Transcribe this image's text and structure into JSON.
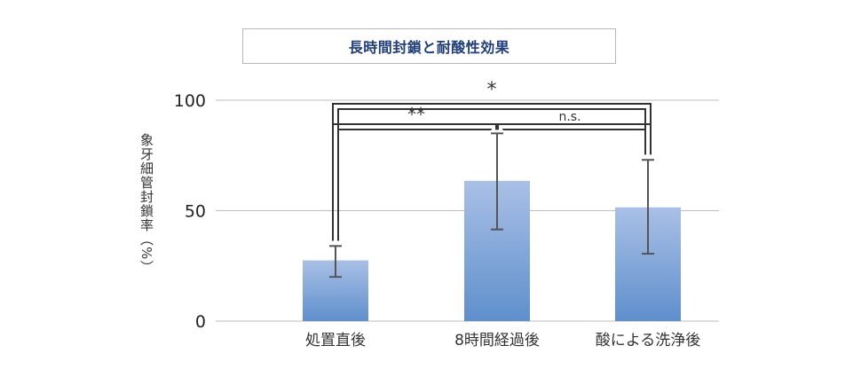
{
  "chart_data": {
    "type": "bar",
    "title": "長時間封鎖と耐酸性効果",
    "ylabel": "象牙細管封鎖率（%）",
    "xlabel": "",
    "categories": [
      "処置直後",
      "8時間経過後",
      "酸による洗浄後"
    ],
    "values": [
      27.5,
      63.5,
      51.5
    ],
    "error_low": [
      20,
      41.5,
      30.5
    ],
    "error_high": [
      34,
      85,
      73
    ],
    "ylim": [
      0,
      100
    ],
    "yticks": [
      0,
      50,
      100
    ],
    "grid": true,
    "significance": [
      {
        "from": 0,
        "to": 1,
        "label": "**"
      },
      {
        "from": 1,
        "to": 2,
        "label": "n.s."
      },
      {
        "from": 0,
        "to": 2,
        "label": "*"
      }
    ],
    "colors": {
      "bar_top": "#a9c0e6",
      "bar_bottom": "#5f8fcc",
      "grid": "#bdbdbd",
      "error": "#555555",
      "bracket": "#333333",
      "title": "#1f3e7a"
    }
  }
}
